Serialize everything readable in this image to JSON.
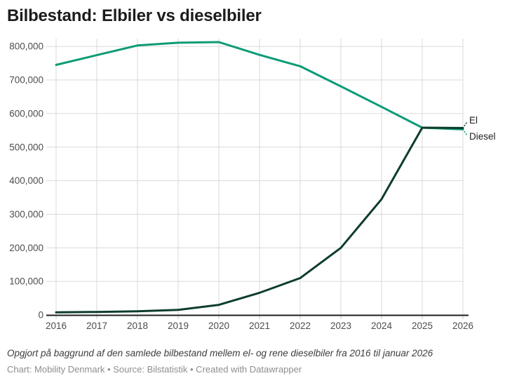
{
  "header": {
    "title": "Bilbestand: Elbiler vs dieselbiler"
  },
  "chart_data": {
    "type": "line",
    "x": [
      2016,
      2017,
      2018,
      2019,
      2020,
      2021,
      2022,
      2023,
      2024,
      2025,
      2026
    ],
    "series": [
      {
        "name": "Diesel",
        "color": "#0d9b76",
        "values": [
          745000,
          774000,
          803000,
          811000,
          813000,
          775000,
          741000,
          681000,
          620000,
          558000,
          553000
        ]
      },
      {
        "name": "El",
        "color": "#0d3d2c",
        "values": [
          8000,
          9000,
          11000,
          15000,
          30000,
          66000,
          110000,
          200000,
          345000,
          558000,
          557000
        ]
      }
    ],
    "ylim": [
      0,
      800000
    ],
    "ytick_step": 100000,
    "grid": true,
    "legend_position": "direct-end-labels-right",
    "end_labels": [
      "El",
      "Diesel"
    ]
  },
  "footer": {
    "description": "Opgjort på baggrund af den samlede bilbestand mellem el- og rene dieselbiler fra 2016 til januar 2026",
    "byline": "Chart: Mobility Denmark • Source: Bilstatistik • Created with Datawrapper"
  },
  "colors": {
    "diesel_line": "#0d9b76",
    "el_line": "#0d3d2c",
    "gridline": "#dadada",
    "axis_line": "#1f1f1f",
    "tick_stub": "#c4c4c4",
    "tick_label": "#4d4d4d",
    "end_label": "#1d1d1d",
    "title": "#1c1c1c",
    "description": "#3d3d3d",
    "byline": "#8e8e8e"
  }
}
